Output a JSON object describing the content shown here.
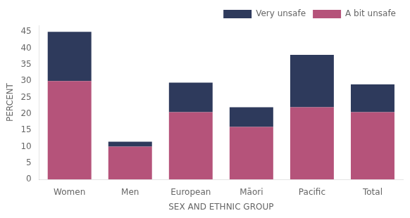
{
  "chart_data": {
    "type": "bar",
    "stacked": true,
    "categories": [
      "Women",
      "Men",
      "European",
      "Māori",
      "Pacific",
      "Total"
    ],
    "series": [
      {
        "name": "A bit unsafe",
        "color": "#b5537a",
        "values": [
          30,
          10,
          20.5,
          16,
          22,
          20.5
        ]
      },
      {
        "name": "Very unsafe",
        "color": "#2e3a5c",
        "values": [
          15,
          1.5,
          9,
          6,
          16,
          8.5
        ]
      }
    ],
    "xlabel": "SEX AND ETHNIC GROUP",
    "ylabel": "PERCENT",
    "ylim": [
      0,
      47
    ],
    "yticks": [
      0,
      5,
      10,
      15,
      20,
      25,
      30,
      35,
      40,
      45
    ],
    "grid": false,
    "legend": "upper right"
  }
}
